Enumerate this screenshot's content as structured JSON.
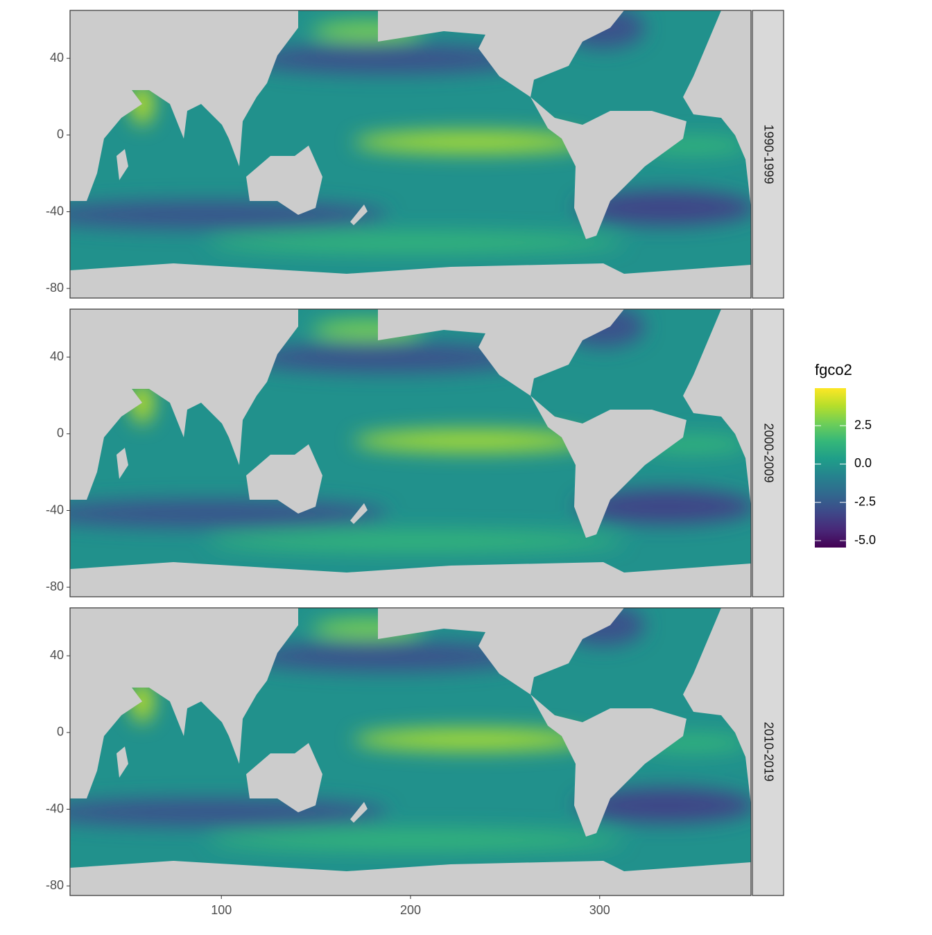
{
  "chart_data": {
    "type": "raster",
    "facets": [
      "1990-1999",
      "2000-2009",
      "2010-2019"
    ],
    "xlim": [
      20,
      380
    ],
    "xticks": [
      100,
      200,
      300
    ],
    "ylim": [
      -85,
      65
    ],
    "yticks": [
      -80,
      -40,
      0,
      40
    ],
    "fill_label": "fgco2",
    "palette": "viridis",
    "fill_lim": [
      -5.45,
      4.95
    ],
    "fill_ticks": [
      2.5,
      {
        "value": 0,
        "label": "0.0"
      },
      -2.5,
      {
        "value": -5,
        "label": "-5.0"
      }
    ]
  }
}
